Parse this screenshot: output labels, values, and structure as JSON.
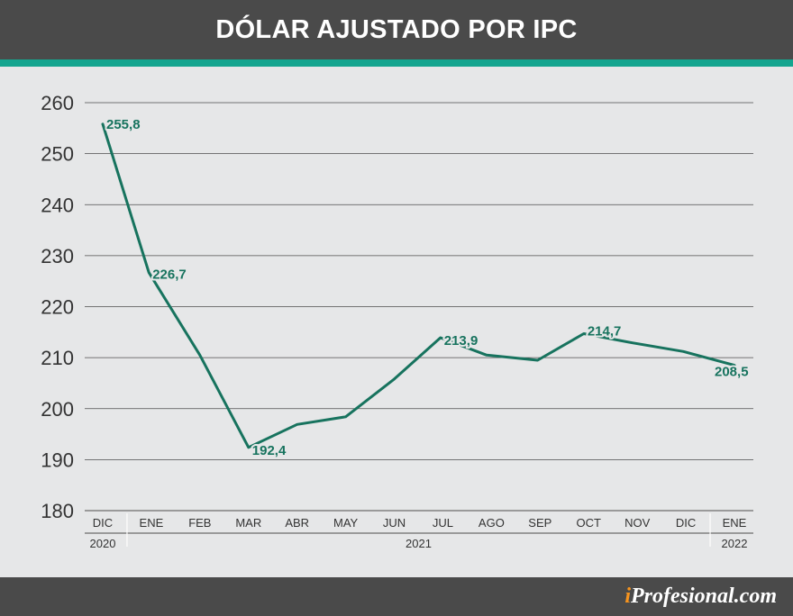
{
  "header": {
    "title": "DÓLAR AJUSTADO POR IPC"
  },
  "footer": {
    "logo_i": "i",
    "logo_rest": "Profesional.com"
  },
  "colors": {
    "line": "#17735e",
    "accent": "#14a58f",
    "bar": "#4a4a4a"
  },
  "chart_data": {
    "type": "line",
    "title": "DÓLAR AJUSTADO POR IPC",
    "xlabel": "",
    "ylabel": "",
    "ylim": [
      180,
      260
    ],
    "yticks": [
      180,
      190,
      200,
      210,
      220,
      230,
      240,
      250,
      260
    ],
    "grid": true,
    "categories": [
      "DIC",
      "ENE",
      "FEB",
      "MAR",
      "ABR",
      "MAY",
      "JUN",
      "JUL",
      "AGO",
      "SEP",
      "OCT",
      "NOV",
      "DIC",
      "ENE"
    ],
    "series": [
      {
        "name": "Dólar ajustado por IPC",
        "points": [
          {
            "x": 0.0,
            "y": 255.8
          },
          {
            "x": 0.95,
            "y": 226.7
          },
          {
            "x": 2.0,
            "y": 210.5
          },
          {
            "x": 3.0,
            "y": 192.4
          },
          {
            "x": 4.0,
            "y": 196.9
          },
          {
            "x": 5.0,
            "y": 198.4
          },
          {
            "x": 6.0,
            "y": 205.8
          },
          {
            "x": 6.95,
            "y": 213.9
          },
          {
            "x": 7.9,
            "y": 210.5
          },
          {
            "x": 8.95,
            "y": 209.5
          },
          {
            "x": 9.9,
            "y": 214.7
          },
          {
            "x": 10.9,
            "y": 212.9
          },
          {
            "x": 11.95,
            "y": 211.2
          },
          {
            "x": 13.0,
            "y": 208.5
          }
        ]
      }
    ],
    "data_labels": [
      {
        "x": 0.0,
        "y": 255.8,
        "text": "255,8"
      },
      {
        "x": 0.95,
        "y": 226.7,
        "text": "226,7"
      },
      {
        "x": 3.0,
        "y": 192.4,
        "text": "192,4"
      },
      {
        "x": 6.95,
        "y": 213.9,
        "text": "213,9"
      },
      {
        "x": 9.9,
        "y": 214.7,
        "text": "214,7"
      },
      {
        "x": 13.0,
        "y": 208.5,
        "text": "208,5"
      }
    ],
    "year_groups": [
      {
        "label": "2020",
        "from": 0,
        "to": 0
      },
      {
        "label": "2021",
        "from": 1,
        "to": 12
      },
      {
        "label": "2022",
        "from": 13,
        "to": 13
      }
    ]
  }
}
